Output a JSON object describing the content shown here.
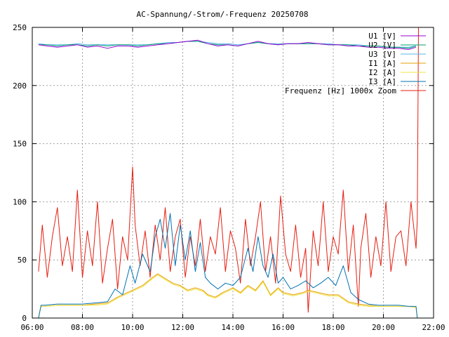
{
  "chart_data": {
    "type": "line",
    "title": "AC-Spannung/-Strom/-Frequenz 20250708",
    "xlabel": "",
    "ylabel": "",
    "xlim": [
      6.0,
      22.0
    ],
    "ylim": [
      0,
      250
    ],
    "x_ticks": [
      "06:00",
      "08:00",
      "10:00",
      "12:00",
      "14:00",
      "16:00",
      "18:00",
      "20:00",
      "22:00"
    ],
    "y_ticks": [
      "0",
      "50",
      "100",
      "150",
      "200",
      "250"
    ],
    "grid": true,
    "legend_position": "top-right",
    "colors": {
      "U1": "#9400d3",
      "U2": "#009e73",
      "U3": "#56b4e9",
      "I1": "#e69f00",
      "I2": "#f0e442",
      "I3": "#0072b2",
      "F": "#e51e10"
    },
    "series": [
      {
        "key": "U1",
        "name": "U1 [V]",
        "x": [
          6.25,
          6.6,
          7.0,
          7.4,
          7.8,
          8.2,
          8.6,
          9.0,
          9.4,
          9.8,
          10.2,
          10.6,
          11.0,
          11.4,
          11.8,
          12.2,
          12.6,
          13.0,
          13.4,
          13.8,
          14.2,
          14.6,
          15.0,
          15.4,
          15.8,
          16.2,
          16.6,
          17.0,
          17.4,
          17.8,
          18.2,
          18.6,
          19.0,
          19.4,
          19.8,
          20.2,
          20.6,
          21.0,
          21.3
        ],
        "y": [
          235,
          234,
          233,
          234,
          235,
          233,
          234,
          232,
          234,
          234,
          233,
          234,
          235,
          236,
          237,
          238,
          239,
          236,
          234,
          235,
          234,
          236,
          238,
          236,
          235,
          236,
          236,
          237,
          236,
          235,
          235,
          234,
          234,
          233,
          233,
          232,
          232,
          231,
          233
        ]
      },
      {
        "key": "U2",
        "name": "U2 [V]",
        "x": [
          6.25,
          6.6,
          7.0,
          7.4,
          7.8,
          8.2,
          8.6,
          9.0,
          9.4,
          9.8,
          10.2,
          10.6,
          11.0,
          11.4,
          11.8,
          12.2,
          12.6,
          13.0,
          13.4,
          13.8,
          14.2,
          14.6,
          15.0,
          15.4,
          15.8,
          16.2,
          16.6,
          17.0,
          17.4,
          17.8,
          18.2,
          18.6,
          19.0,
          19.4,
          19.8,
          20.2,
          20.6,
          21.0,
          21.3
        ],
        "y": [
          235,
          235,
          234,
          235,
          235,
          234,
          235,
          234,
          235,
          235,
          234,
          235,
          236,
          236,
          237,
          238,
          238,
          236,
          235,
          235,
          234,
          236,
          237,
          236,
          235,
          236,
          236,
          236,
          236,
          235,
          235,
          235,
          234,
          234,
          234,
          233,
          233,
          232,
          234
        ]
      },
      {
        "key": "U3",
        "name": "U3 [V]",
        "x": [
          6.25,
          6.6,
          7.0,
          7.4,
          7.8,
          8.2,
          8.6,
          9.0,
          9.4,
          9.8,
          10.2,
          10.6,
          11.0,
          11.4,
          11.8,
          12.2,
          12.6,
          13.0,
          13.4,
          13.8,
          14.2,
          14.6,
          15.0,
          15.4,
          15.8,
          16.2,
          16.6,
          17.0,
          17.4,
          17.8,
          18.2,
          18.6,
          19.0,
          19.4,
          19.8,
          20.2,
          20.6,
          21.0,
          21.3
        ],
        "y": [
          236,
          235,
          235,
          235,
          236,
          235,
          235,
          235,
          235,
          235,
          235,
          235,
          236,
          237,
          237,
          238,
          238,
          237,
          236,
          236,
          235,
          236,
          237,
          236,
          236,
          236,
          236,
          236,
          236,
          236,
          235,
          235,
          235,
          234,
          234,
          233,
          233,
          233,
          234
        ]
      },
      {
        "key": "I1",
        "name": "I1 [A]",
        "x": [
          6.25,
          6.35,
          6.5,
          7.0,
          7.5,
          8.0,
          8.5,
          9.0,
          9.4,
          9.8,
          10.0,
          10.4,
          10.8,
          11.0,
          11.3,
          11.6,
          11.9,
          12.2,
          12.5,
          12.8,
          13.0,
          13.3,
          13.6,
          14.0,
          14.3,
          14.6,
          14.9,
          15.2,
          15.5,
          15.8,
          16.0,
          16.4,
          16.8,
          17.0,
          17.4,
          17.8,
          18.2,
          18.6,
          19.0,
          19.4,
          19.8,
          20.2,
          20.6,
          21.0,
          21.3,
          21.35
        ],
        "y": [
          0,
          10,
          10,
          11,
          11,
          11,
          12,
          13,
          18,
          22,
          24,
          28,
          35,
          38,
          34,
          30,
          28,
          24,
          26,
          24,
          20,
          18,
          22,
          26,
          22,
          28,
          24,
          32,
          20,
          26,
          22,
          20,
          22,
          24,
          22,
          20,
          20,
          14,
          12,
          11,
          10,
          10,
          10,
          10,
          9,
          0
        ]
      },
      {
        "key": "I2",
        "name": "I2 [A]",
        "x": [
          6.25,
          6.35,
          6.5,
          7.0,
          7.5,
          8.0,
          8.5,
          9.0,
          9.4,
          9.8,
          10.0,
          10.4,
          10.8,
          11.0,
          11.3,
          11.6,
          11.9,
          12.2,
          12.5,
          12.8,
          13.0,
          13.3,
          13.6,
          14.0,
          14.3,
          14.6,
          14.9,
          15.2,
          15.5,
          15.8,
          16.0,
          16.4,
          16.8,
          17.0,
          17.4,
          17.8,
          18.2,
          18.6,
          19.0,
          19.4,
          19.8,
          20.2,
          20.6,
          21.0,
          21.3,
          21.35
        ],
        "y": [
          0,
          10,
          10,
          11,
          11,
          11,
          11,
          12,
          17,
          21,
          23,
          27,
          34,
          37,
          33,
          29,
          27,
          23,
          25,
          23,
          19,
          17,
          21,
          25,
          21,
          27,
          23,
          31,
          19,
          25,
          21,
          19,
          21,
          23,
          21,
          19,
          19,
          13,
          11,
          10,
          10,
          10,
          10,
          10,
          9,
          0
        ]
      },
      {
        "key": "I3",
        "name": "I3 [A]",
        "x": [
          6.25,
          6.35,
          6.5,
          7.0,
          7.5,
          8.0,
          8.5,
          9.0,
          9.3,
          9.6,
          9.9,
          10.1,
          10.4,
          10.7,
          10.9,
          11.1,
          11.3,
          11.5,
          11.7,
          11.9,
          12.1,
          12.3,
          12.5,
          12.7,
          12.9,
          13.1,
          13.4,
          13.7,
          14.0,
          14.3,
          14.6,
          14.8,
          15.0,
          15.2,
          15.4,
          15.6,
          15.8,
          16.0,
          16.3,
          16.6,
          16.9,
          17.2,
          17.5,
          17.8,
          18.1,
          18.4,
          18.7,
          19.0,
          19.4,
          19.8,
          20.2,
          20.6,
          21.0,
          21.3,
          21.35
        ],
        "y": [
          0,
          11,
          11,
          12,
          12,
          12,
          13,
          14,
          25,
          20,
          45,
          30,
          55,
          40,
          70,
          85,
          60,
          90,
          45,
          80,
          50,
          75,
          40,
          65,
          35,
          30,
          25,
          30,
          28,
          35,
          60,
          40,
          70,
          45,
          35,
          55,
          30,
          35,
          25,
          28,
          32,
          26,
          30,
          35,
          28,
          45,
          22,
          16,
          12,
          11,
          11,
          11,
          10,
          10,
          0
        ]
      },
      {
        "key": "F",
        "name": "Frequenz [Hz] 1000x Zoom",
        "x": [
          6.25,
          6.4,
          6.6,
          6.8,
          7.0,
          7.2,
          7.4,
          7.6,
          7.8,
          8.0,
          8.2,
          8.4,
          8.6,
          8.8,
          9.0,
          9.2,
          9.4,
          9.6,
          9.8,
          10.0,
          10.1,
          10.3,
          10.5,
          10.7,
          10.9,
          11.1,
          11.3,
          11.5,
          11.7,
          11.9,
          12.1,
          12.3,
          12.5,
          12.7,
          12.9,
          13.1,
          13.3,
          13.5,
          13.7,
          13.9,
          14.1,
          14.3,
          14.5,
          14.7,
          14.9,
          15.1,
          15.3,
          15.5,
          15.7,
          15.9,
          16.1,
          16.3,
          16.5,
          16.7,
          16.9,
          17.0,
          17.2,
          17.4,
          17.6,
          17.8,
          18.0,
          18.2,
          18.4,
          18.6,
          18.8,
          19.0,
          19.1,
          19.3,
          19.5,
          19.7,
          19.9,
          20.1,
          20.3,
          20.5,
          20.7,
          20.9,
          21.1,
          21.3,
          21.35,
          21.4
        ],
        "y": [
          40,
          80,
          35,
          70,
          95,
          45,
          70,
          40,
          110,
          35,
          75,
          45,
          100,
          30,
          60,
          85,
          25,
          70,
          50,
          130,
          80,
          45,
          75,
          35,
          80,
          50,
          95,
          40,
          70,
          85,
          35,
          70,
          45,
          85,
          40,
          70,
          55,
          95,
          40,
          75,
          60,
          30,
          85,
          45,
          70,
          100,
          40,
          70,
          30,
          105,
          55,
          40,
          80,
          35,
          60,
          5,
          75,
          45,
          100,
          40,
          70,
          55,
          110,
          40,
          80,
          10,
          60,
          90,
          35,
          70,
          45,
          100,
          40,
          70,
          75,
          45,
          100,
          60,
          85,
          250
        ]
      }
    ]
  }
}
